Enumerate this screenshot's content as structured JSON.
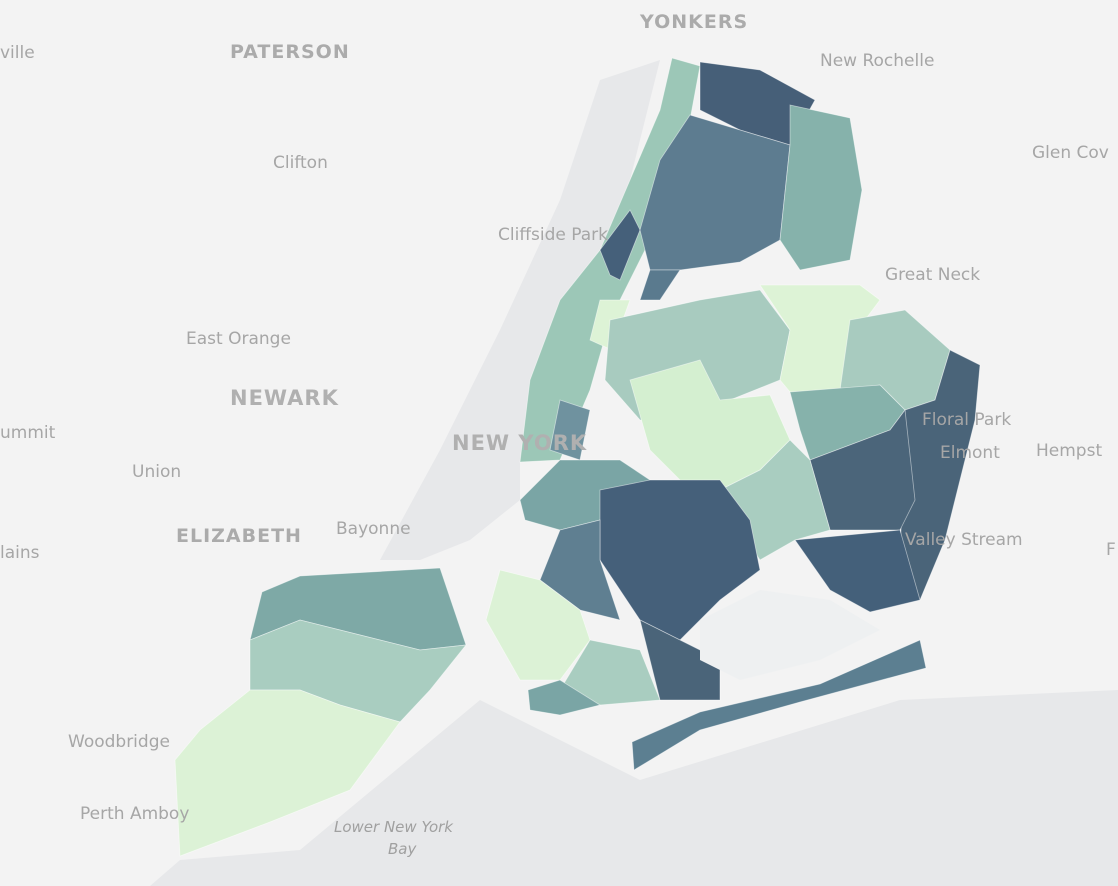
{
  "labels": [
    {
      "text": "ville"
    },
    {
      "text": "PATERSON"
    },
    {
      "text": "YONKERS"
    },
    {
      "text": "New Rochelle"
    },
    {
      "text": "Clifton"
    },
    {
      "text": "Glen Cov"
    },
    {
      "text": "Cliffside Park"
    },
    {
      "text": "Great Neck"
    },
    {
      "text": "East Orange"
    },
    {
      "text": "NEWARK"
    },
    {
      "text": "ummit"
    },
    {
      "text": "Union"
    },
    {
      "text": "NEW YORK"
    },
    {
      "text": "Floral Park"
    },
    {
      "text": "Elmont"
    },
    {
      "text": "Hempst"
    },
    {
      "text": "ELIZABETH"
    },
    {
      "text": "Bayonne"
    },
    {
      "text": "Valley Stream"
    },
    {
      "text": "lains"
    },
    {
      "text": "F"
    },
    {
      "text": "Woodbridge"
    },
    {
      "text": "Perth Amboy"
    },
    {
      "text": "Lower New York"
    },
    {
      "text": "Bay"
    }
  ]
}
